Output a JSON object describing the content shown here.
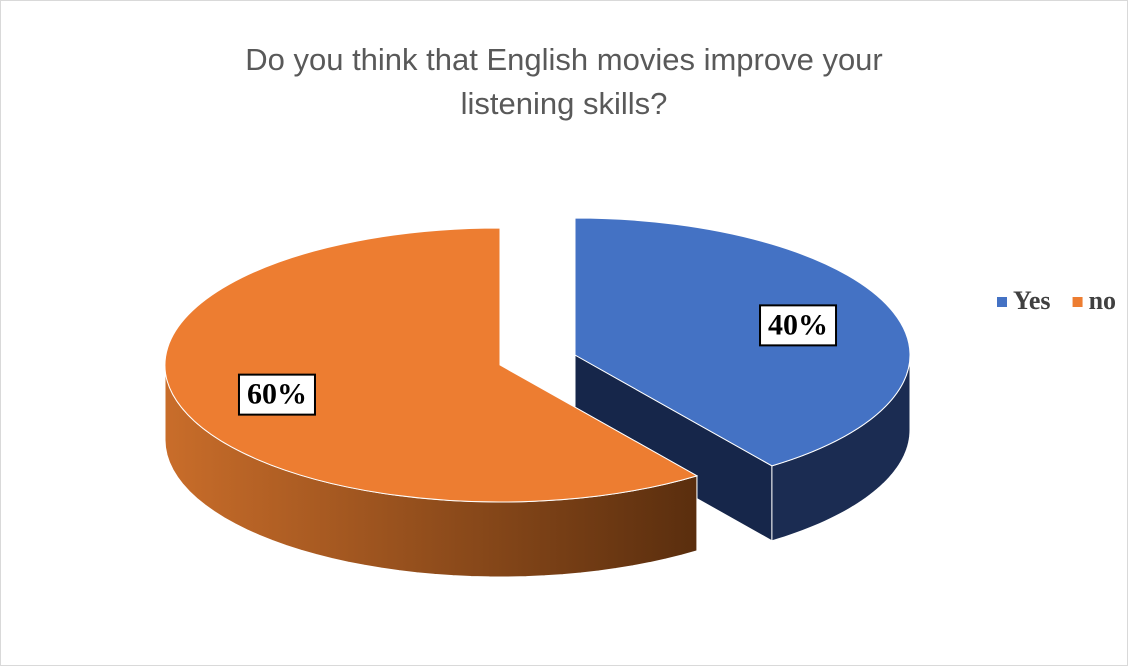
{
  "chart_data": {
    "type": "pie3d",
    "title": "Do you think that English movies improve your listening skills?",
    "categories": [
      "Yes",
      "no"
    ],
    "values": [
      40,
      60
    ],
    "value_labels": [
      "40%",
      "60%"
    ],
    "colors": [
      "#4472c4",
      "#ed7d31"
    ],
    "legend": "right"
  }
}
